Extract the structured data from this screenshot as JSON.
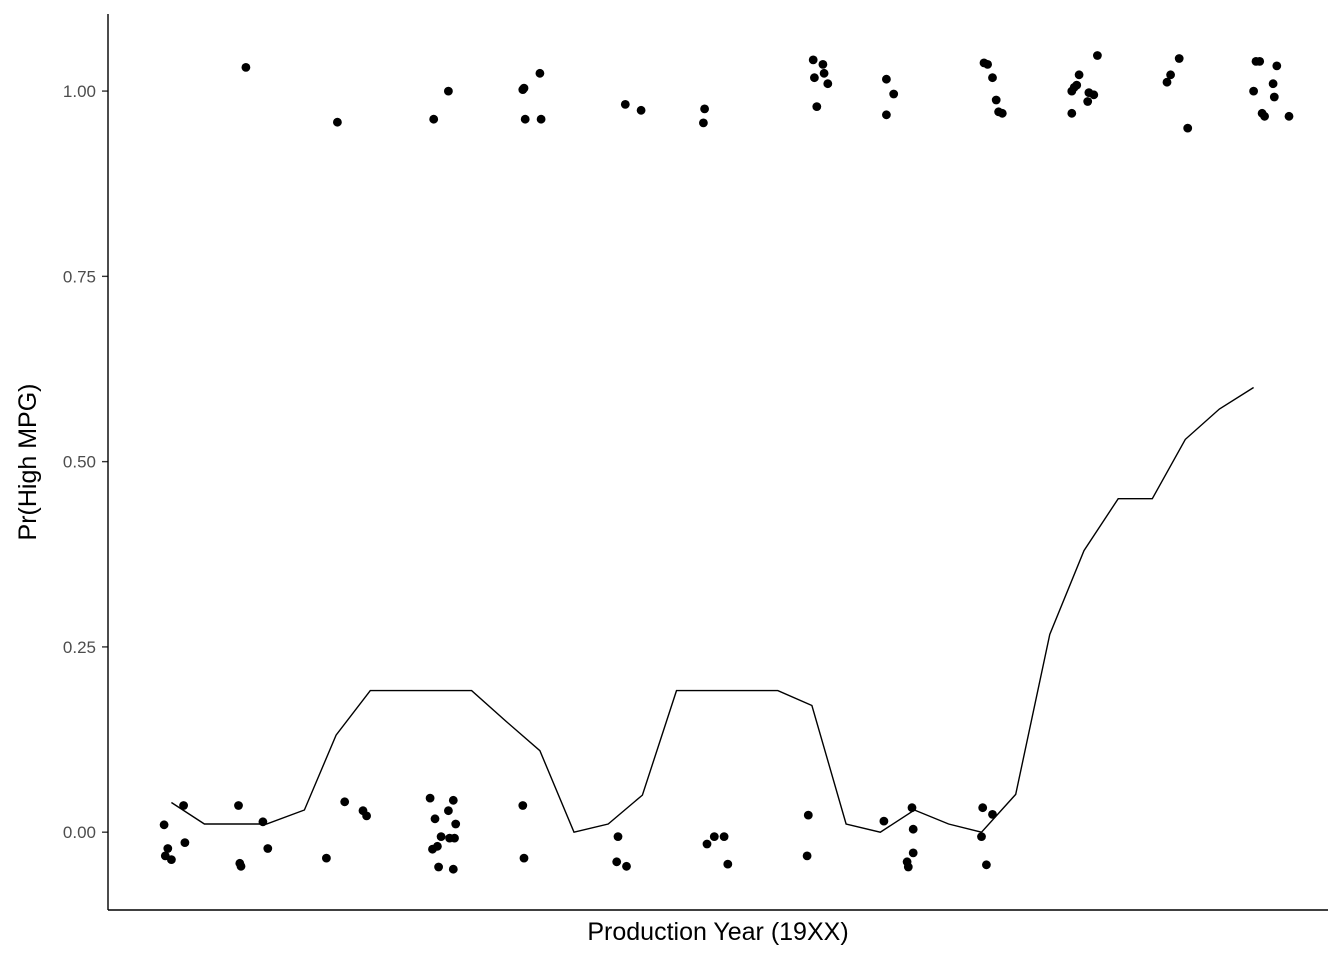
{
  "chart_data": {
    "type": "scatter",
    "title": "",
    "xlabel": "Production Year (19XX)",
    "ylabel": "Pr(High MPG)",
    "ylim": [
      -0.105,
      1.104
    ],
    "xlim": [
      0,
      1
    ],
    "x_ticks_shown": false,
    "grid": false,
    "legend": "none",
    "y_ticks": [
      {
        "value": 0.0,
        "label": "0.00"
      },
      {
        "value": 0.25,
        "label": "0.25"
      },
      {
        "value": 0.5,
        "label": "0.50"
      },
      {
        "value": 0.75,
        "label": "0.75"
      },
      {
        "value": 1.0,
        "label": "1.00"
      }
    ],
    "series": [
      {
        "kind": "points",
        "color": "#000000",
        "points": [
          [
            0.046,
            0.01
          ],
          [
            0.049,
            -0.022
          ],
          [
            0.047,
            -0.032
          ],
          [
            0.052,
            -0.037
          ],
          [
            0.062,
            0.036
          ],
          [
            0.063,
            -0.014
          ],
          [
            0.113,
            1.032
          ],
          [
            0.107,
            0.036
          ],
          [
            0.108,
            -0.042
          ],
          [
            0.109,
            -0.046
          ],
          [
            0.127,
            0.014
          ],
          [
            0.131,
            -0.022
          ],
          [
            0.188,
            0.958
          ],
          [
            0.179,
            -0.035
          ],
          [
            0.194,
            0.041
          ],
          [
            0.209,
            0.029
          ],
          [
            0.212,
            0.022
          ],
          [
            0.267,
            0.962
          ],
          [
            0.279,
            1.0
          ],
          [
            0.264,
            0.046
          ],
          [
            0.266,
            -0.023
          ],
          [
            0.268,
            0.018
          ],
          [
            0.27,
            -0.019
          ],
          [
            0.271,
            -0.047
          ],
          [
            0.273,
            -0.006
          ],
          [
            0.279,
            0.029
          ],
          [
            0.28,
            -0.008
          ],
          [
            0.283,
            0.043
          ],
          [
            0.284,
            -0.008
          ],
          [
            0.285,
            0.011
          ],
          [
            0.283,
            -0.05
          ],
          [
            0.341,
            1.004
          ],
          [
            0.34,
            1.002
          ],
          [
            0.342,
            0.962
          ],
          [
            0.354,
            1.024
          ],
          [
            0.355,
            0.962
          ],
          [
            0.34,
            0.036
          ],
          [
            0.341,
            -0.035
          ],
          [
            0.424,
            0.982
          ],
          [
            0.437,
            0.974
          ],
          [
            0.418,
            -0.006
          ],
          [
            0.417,
            -0.04
          ],
          [
            0.425,
            -0.046
          ],
          [
            0.489,
            0.976
          ],
          [
            0.488,
            0.957
          ],
          [
            0.491,
            -0.016
          ],
          [
            0.497,
            -0.006
          ],
          [
            0.505,
            -0.006
          ],
          [
            0.508,
            -0.043
          ],
          [
            0.578,
            1.042
          ],
          [
            0.579,
            1.018
          ],
          [
            0.581,
            0.979
          ],
          [
            0.586,
            1.036
          ],
          [
            0.587,
            1.024
          ],
          [
            0.59,
            1.01
          ],
          [
            0.574,
            0.023
          ],
          [
            0.573,
            -0.032
          ],
          [
            0.638,
            1.016
          ],
          [
            0.638,
            0.968
          ],
          [
            0.644,
            0.996
          ],
          [
            0.636,
            0.015
          ],
          [
            0.655,
            -0.04
          ],
          [
            0.656,
            -0.047
          ],
          [
            0.659,
            0.033
          ],
          [
            0.66,
            0.004
          ],
          [
            0.66,
            -0.028
          ],
          [
            0.718,
            1.038
          ],
          [
            0.721,
            1.036
          ],
          [
            0.725,
            1.018
          ],
          [
            0.728,
            0.988
          ],
          [
            0.73,
            0.972
          ],
          [
            0.733,
            0.97
          ],
          [
            0.716,
            -0.006
          ],
          [
            0.717,
            0.033
          ],
          [
            0.72,
            -0.044
          ],
          [
            0.725,
            0.024
          ],
          [
            0.79,
            0.97
          ],
          [
            0.79,
            1.0
          ],
          [
            0.792,
            1.005
          ],
          [
            0.794,
            1.008
          ],
          [
            0.796,
            1.022
          ],
          [
            0.803,
            0.986
          ],
          [
            0.804,
            0.998
          ],
          [
            0.808,
            0.995
          ],
          [
            0.811,
            1.048
          ],
          [
            0.868,
            1.012
          ],
          [
            0.871,
            1.022
          ],
          [
            0.878,
            1.044
          ],
          [
            0.885,
            0.95
          ],
          [
            0.939,
            1.0
          ],
          [
            0.941,
            1.04
          ],
          [
            0.944,
            1.04
          ],
          [
            0.946,
            0.97
          ],
          [
            0.948,
            0.966
          ],
          [
            0.955,
            1.01
          ],
          [
            0.956,
            0.992
          ],
          [
            0.958,
            1.034
          ],
          [
            0.968,
            0.966
          ]
        ]
      },
      {
        "kind": "line",
        "color": "#000000",
        "points": [
          [
            0.052,
            0.04
          ],
          [
            0.079,
            0.011
          ],
          [
            0.13,
            0.011
          ],
          [
            0.161,
            0.03
          ],
          [
            0.187,
            0.131
          ],
          [
            0.215,
            0.191
          ],
          [
            0.243,
            0.191
          ],
          [
            0.27,
            0.191
          ],
          [
            0.298,
            0.191
          ],
          [
            0.326,
            0.15
          ],
          [
            0.354,
            0.11
          ],
          [
            0.382,
            0.0
          ],
          [
            0.41,
            0.011
          ],
          [
            0.438,
            0.05
          ],
          [
            0.466,
            0.191
          ],
          [
            0.494,
            0.191
          ],
          [
            0.521,
            0.191
          ],
          [
            0.549,
            0.191
          ],
          [
            0.577,
            0.171
          ],
          [
            0.605,
            0.011
          ],
          [
            0.633,
            0.0
          ],
          [
            0.661,
            0.03
          ],
          [
            0.689,
            0.011
          ],
          [
            0.716,
            0.0
          ],
          [
            0.744,
            0.051
          ],
          [
            0.772,
            0.267
          ],
          [
            0.8,
            0.38
          ],
          [
            0.828,
            0.45
          ],
          [
            0.856,
            0.45
          ],
          [
            0.883,
            0.53
          ],
          [
            0.911,
            0.571
          ],
          [
            0.939,
            0.6
          ]
        ]
      }
    ]
  }
}
